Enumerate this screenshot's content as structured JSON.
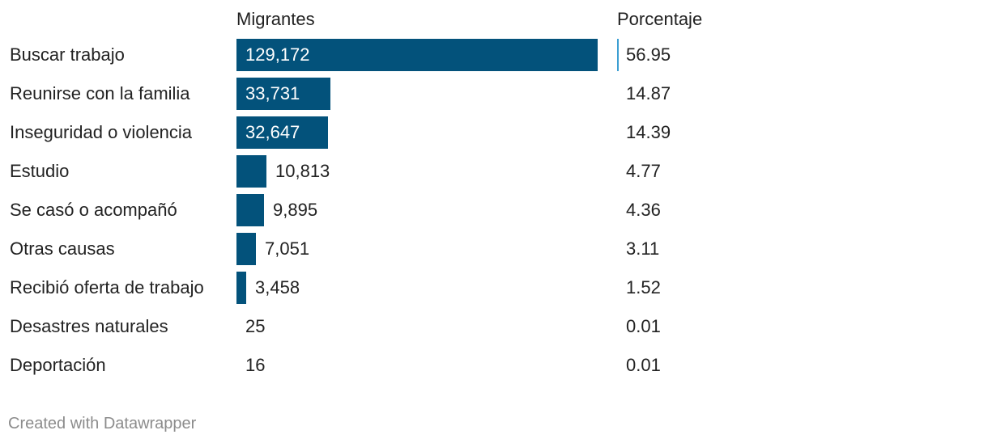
{
  "headers": {
    "migrantes": "Migrantes",
    "porcentaje": "Porcentaje"
  },
  "chart_data": {
    "type": "bar",
    "title": "",
    "xlabel": "Migrantes",
    "ylabel": "",
    "xlim": [
      0,
      129172
    ],
    "bar_color": "#03527b",
    "highlight_color": "#3d9fd3",
    "categories": [
      "Buscar trabajo",
      "Reunirse con la familia",
      "Inseguridad o violencia",
      "Estudio",
      "Se casó o acompañó",
      "Otras causas",
      "Recibió oferta de trabajo",
      "Desastres naturales",
      "Deportación"
    ],
    "values": [
      129172,
      33731,
      32647,
      10813,
      9895,
      7051,
      3458,
      25,
      16
    ],
    "value_labels": [
      "129,172",
      "33,731",
      "32,647",
      "10,813",
      "9,895",
      "7,051",
      "3,458",
      "25",
      "16"
    ],
    "percentages": [
      "56.95",
      "14.87",
      "14.39",
      "4.77",
      "4.36",
      "3.11",
      "1.52",
      "0.01",
      "0.01"
    ]
  },
  "footer": "Created with Datawrapper"
}
